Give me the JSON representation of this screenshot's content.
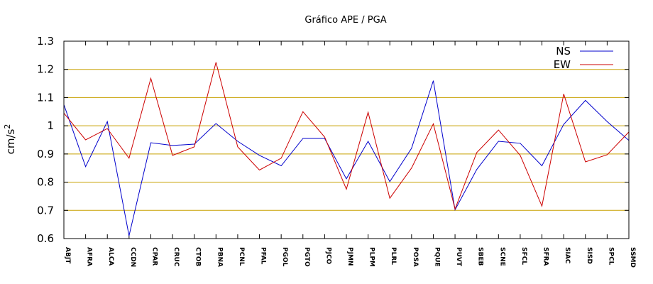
{
  "chart_data": {
    "type": "line",
    "title": "Gráfico  APE / PGA",
    "ylabel": "cm/s",
    "ylabel_superscript": "2",
    "ylim": [
      0.6,
      1.3
    ],
    "yticks": [
      0.6,
      0.7,
      0.8,
      0.9,
      1,
      1.1,
      1.2,
      1.3
    ],
    "ytick_labels": [
      "0.6",
      "0.7",
      "0.8",
      "0.9",
      "1",
      "1.1",
      "1.2",
      "1.3"
    ],
    "grid": true,
    "legend_position": "top-right",
    "categories": [
      "ABJT",
      "AFRA",
      "ALCA",
      "CCDN",
      "CPAR",
      "CRUC",
      "CTOB",
      "PBNA",
      "PCNL",
      "PFAL",
      "PGOL",
      "PGTO",
      "PJCO",
      "PJMN",
      "PLPM",
      "PLRL",
      "POSA",
      "PQUE",
      "PUVT",
      "SBEB",
      "SCNE",
      "SFCL",
      "SFRA",
      "SIAC",
      "SISD",
      "SPCL",
      "SSMD"
    ],
    "series": [
      {
        "name": "NS",
        "color": "#0000cc",
        "values": [
          1.075,
          0.855,
          1.015,
          0.61,
          0.94,
          0.93,
          0.935,
          1.008,
          0.945,
          0.895,
          0.858,
          0.955,
          0.955,
          0.812,
          0.945,
          0.802,
          0.92,
          1.16,
          0.702,
          0.845,
          0.945,
          0.938,
          0.858,
          1.005,
          1.09,
          1.015,
          0.948
        ]
      },
      {
        "name": "EW",
        "color": "#cc0000",
        "values": [
          1.045,
          0.95,
          0.99,
          0.885,
          1.168,
          0.895,
          0.925,
          1.225,
          0.925,
          0.843,
          0.885,
          1.05,
          0.96,
          0.775,
          1.048,
          0.743,
          0.85,
          1.007,
          0.705,
          0.905,
          0.985,
          0.895,
          0.715,
          1.113,
          0.872,
          0.897,
          0.978
        ]
      }
    ],
    "grid_color": "#c8a000"
  }
}
